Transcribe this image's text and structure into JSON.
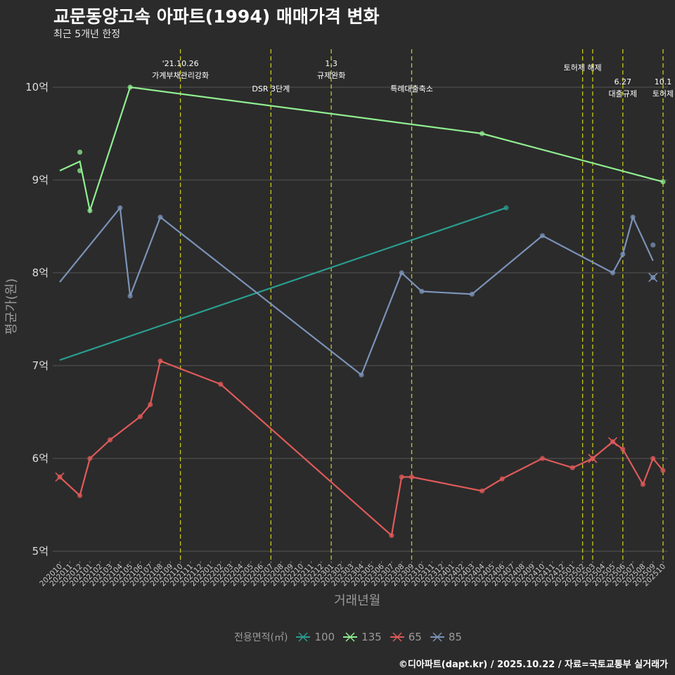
{
  "title": "교문동양고속 아파트(1994) 매매가격 변화",
  "subtitle": "최근 5개년 한정",
  "caption": "©디아파트(dapt.kr) / 2025.10.22 / 자료=국토교통부 실거래가",
  "chart_data": {
    "type": "line",
    "xlabel": "거래년월",
    "ylabel": "평균가(원)",
    "ylim": [
      4.95,
      10.3
    ],
    "y_ticks": [
      5,
      6,
      7,
      8,
      9,
      10
    ],
    "y_tick_labels": [
      "5억",
      "6억",
      "7억",
      "8억",
      "9억",
      "10억"
    ],
    "x_start": "2020-10",
    "x_end": "2025-10",
    "x_tick_labels": [
      "202010",
      "202011",
      "202012",
      "202101",
      "202102",
      "202103",
      "202104",
      "202105",
      "202106",
      "202107",
      "202108",
      "202109",
      "202110",
      "202111",
      "202112",
      "202201",
      "202202",
      "202203",
      "202204",
      "202205",
      "202206",
      "202207",
      "202208",
      "202209",
      "202210",
      "202211",
      "202212",
      "202301",
      "202302",
      "202303",
      "202304",
      "202305",
      "202306",
      "202307",
      "202308",
      "202309",
      "202310",
      "202311",
      "202312",
      "202401",
      "202402",
      "202403",
      "202404",
      "202405",
      "202406",
      "202407",
      "202408",
      "202409",
      "202410",
      "202411",
      "202412",
      "202501",
      "202502",
      "202503",
      "202504",
      "202505",
      "202506",
      "202507",
      "202508",
      "202509",
      "202510"
    ],
    "legend_title": "전용면적(㎡)",
    "colors": {
      "background": "#2b2b2b",
      "grid": "#555555",
      "vline": "#c8c81e",
      "tick": "#cccccc"
    },
    "series": [
      {
        "name": "100",
        "color": "#2a9d8f",
        "line": [
          [
            0.0,
            7.06
          ],
          [
            22.2,
            8.7
          ]
        ],
        "points": [
          [
            22.2,
            8.7
          ]
        ],
        "crosses": []
      },
      {
        "name": "135",
        "color": "#90ee90",
        "line": [
          [
            0.0,
            9.1
          ],
          [
            1.0,
            9.2
          ],
          [
            1.5,
            8.67
          ],
          [
            3.5,
            10.0
          ],
          [
            21.0,
            9.5
          ],
          [
            30.0,
            8.98
          ]
        ],
        "points": [
          [
            1.0,
            9.3
          ],
          [
            1.0,
            9.1
          ],
          [
            1.5,
            8.67
          ],
          [
            3.5,
            10.0
          ],
          [
            21.0,
            9.5
          ],
          [
            30.0,
            8.98
          ]
        ],
        "crosses": []
      },
      {
        "name": "65",
        "color": "#e05a5a",
        "line": [
          [
            0.0,
            5.8
          ],
          [
            1.0,
            5.6
          ],
          [
            1.5,
            6.0
          ],
          [
            2.5,
            6.2
          ],
          [
            4.0,
            6.45
          ],
          [
            4.5,
            6.58
          ],
          [
            5.0,
            7.05
          ],
          [
            8.0,
            6.8
          ],
          [
            16.5,
            5.17
          ],
          [
            17.0,
            5.8
          ],
          [
            17.5,
            5.8
          ],
          [
            21.0,
            5.65
          ],
          [
            22.0,
            5.78
          ],
          [
            24.0,
            6.0
          ],
          [
            25.5,
            5.9
          ],
          [
            26.5,
            6.0
          ],
          [
            27.5,
            6.18
          ],
          [
            28.0,
            6.1
          ],
          [
            29.0,
            5.72
          ],
          [
            29.5,
            6.0
          ],
          [
            30.0,
            5.87
          ]
        ],
        "points": [
          [
            0.0,
            5.8
          ],
          [
            1.0,
            5.6
          ],
          [
            1.5,
            6.0
          ],
          [
            2.5,
            6.2
          ],
          [
            4.0,
            6.45
          ],
          [
            4.5,
            6.58
          ],
          [
            5.0,
            7.05
          ],
          [
            8.0,
            6.8
          ],
          [
            16.5,
            5.17
          ],
          [
            17.0,
            5.8
          ],
          [
            17.5,
            5.8
          ],
          [
            21.0,
            5.65
          ],
          [
            22.0,
            5.78
          ],
          [
            24.0,
            6.0
          ],
          [
            25.5,
            5.9
          ],
          [
            26.5,
            6.0
          ],
          [
            27.5,
            6.18
          ],
          [
            28.0,
            6.1
          ],
          [
            29.0,
            5.72
          ],
          [
            29.5,
            6.0
          ],
          [
            30.0,
            5.87
          ]
        ],
        "crosses": [
          [
            0.0,
            5.8
          ],
          [
            26.5,
            6.0
          ],
          [
            27.5,
            6.18
          ]
        ]
      },
      {
        "name": "85",
        "color": "#7b93b8",
        "line": [
          [
            0.0,
            7.9
          ],
          [
            3.0,
            8.7
          ],
          [
            3.5,
            7.75
          ],
          [
            5.0,
            8.6
          ],
          [
            15.0,
            6.9
          ],
          [
            17.0,
            8.0
          ],
          [
            18.0,
            7.8
          ],
          [
            20.5,
            7.77
          ],
          [
            24.0,
            8.4
          ],
          [
            27.5,
            8.0
          ],
          [
            28.0,
            8.2
          ],
          [
            28.5,
            8.6
          ],
          [
            29.5,
            8.13
          ]
        ],
        "points": [
          [
            3.0,
            8.7
          ],
          [
            3.5,
            7.75
          ],
          [
            5.0,
            8.6
          ],
          [
            15.0,
            6.9
          ],
          [
            17.0,
            8.0
          ],
          [
            18.0,
            7.8
          ],
          [
            20.5,
            7.77
          ],
          [
            24.0,
            8.4
          ],
          [
            27.5,
            8.0
          ],
          [
            28.0,
            8.2
          ],
          [
            28.5,
            8.6
          ],
          [
            29.5,
            8.3
          ],
          [
            29.5,
            7.95
          ]
        ],
        "crosses": [
          [
            29.5,
            7.95
          ]
        ]
      }
    ],
    "events": [
      {
        "x": 6.0,
        "lines": [
          "'21.10.26",
          "가계부채관리강화"
        ],
        "row": 0
      },
      {
        "x": 10.5,
        "lines": [
          "DSR 3단계"
        ],
        "row": 2
      },
      {
        "x": 13.5,
        "lines": [
          "1.3",
          "규제완화"
        ],
        "row": 0
      },
      {
        "x": 17.5,
        "lines": [
          "특례대출축소"
        ],
        "row": 2
      },
      {
        "x": 26.0,
        "lines": [
          "토허제 해제"
        ],
        "row": 1
      },
      {
        "x": 26.5,
        "lines": [],
        "row": 1
      },
      {
        "x": 28.0,
        "lines": [
          "6.27",
          "대출규제"
        ],
        "row": 3
      },
      {
        "x": 30.0,
        "lines": [
          "10.1",
          "토허제"
        ],
        "row": 3
      }
    ]
  }
}
